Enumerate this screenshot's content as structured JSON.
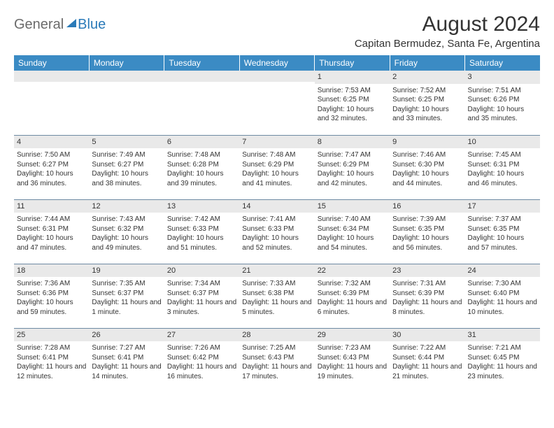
{
  "brand": {
    "part1": "General",
    "part2": "Blue"
  },
  "title": "August 2024",
  "location": "Capitan Bermudez, Santa Fe, Argentina",
  "colors": {
    "header_bg": "#3b8bc4",
    "header_text": "#ffffff",
    "daynum_bg": "#e9e9e9",
    "rule": "#6e8aa3",
    "logo_gray": "#6b6b6b",
    "logo_blue": "#2a7ab8",
    "body_text": "#333333",
    "page_bg": "#ffffff"
  },
  "typography": {
    "title_fontsize": 30,
    "location_fontsize": 15,
    "dayheader_fontsize": 12,
    "daynum_fontsize": 11,
    "cell_fontsize": 10,
    "logo_fontsize": 20
  },
  "day_headers": [
    "Sunday",
    "Monday",
    "Tuesday",
    "Wednesday",
    "Thursday",
    "Friday",
    "Saturday"
  ],
  "weeks": [
    [
      {
        "n": "",
        "sunrise": "",
        "sunset": "",
        "daylight": ""
      },
      {
        "n": "",
        "sunrise": "",
        "sunset": "",
        "daylight": ""
      },
      {
        "n": "",
        "sunrise": "",
        "sunset": "",
        "daylight": ""
      },
      {
        "n": "",
        "sunrise": "",
        "sunset": "",
        "daylight": ""
      },
      {
        "n": "1",
        "sunrise": "Sunrise: 7:53 AM",
        "sunset": "Sunset: 6:25 PM",
        "daylight": "Daylight: 10 hours and 32 minutes."
      },
      {
        "n": "2",
        "sunrise": "Sunrise: 7:52 AM",
        "sunset": "Sunset: 6:25 PM",
        "daylight": "Daylight: 10 hours and 33 minutes."
      },
      {
        "n": "3",
        "sunrise": "Sunrise: 7:51 AM",
        "sunset": "Sunset: 6:26 PM",
        "daylight": "Daylight: 10 hours and 35 minutes."
      }
    ],
    [
      {
        "n": "4",
        "sunrise": "Sunrise: 7:50 AM",
        "sunset": "Sunset: 6:27 PM",
        "daylight": "Daylight: 10 hours and 36 minutes."
      },
      {
        "n": "5",
        "sunrise": "Sunrise: 7:49 AM",
        "sunset": "Sunset: 6:27 PM",
        "daylight": "Daylight: 10 hours and 38 minutes."
      },
      {
        "n": "6",
        "sunrise": "Sunrise: 7:48 AM",
        "sunset": "Sunset: 6:28 PM",
        "daylight": "Daylight: 10 hours and 39 minutes."
      },
      {
        "n": "7",
        "sunrise": "Sunrise: 7:48 AM",
        "sunset": "Sunset: 6:29 PM",
        "daylight": "Daylight: 10 hours and 41 minutes."
      },
      {
        "n": "8",
        "sunrise": "Sunrise: 7:47 AM",
        "sunset": "Sunset: 6:29 PM",
        "daylight": "Daylight: 10 hours and 42 minutes."
      },
      {
        "n": "9",
        "sunrise": "Sunrise: 7:46 AM",
        "sunset": "Sunset: 6:30 PM",
        "daylight": "Daylight: 10 hours and 44 minutes."
      },
      {
        "n": "10",
        "sunrise": "Sunrise: 7:45 AM",
        "sunset": "Sunset: 6:31 PM",
        "daylight": "Daylight: 10 hours and 46 minutes."
      }
    ],
    [
      {
        "n": "11",
        "sunrise": "Sunrise: 7:44 AM",
        "sunset": "Sunset: 6:31 PM",
        "daylight": "Daylight: 10 hours and 47 minutes."
      },
      {
        "n": "12",
        "sunrise": "Sunrise: 7:43 AM",
        "sunset": "Sunset: 6:32 PM",
        "daylight": "Daylight: 10 hours and 49 minutes."
      },
      {
        "n": "13",
        "sunrise": "Sunrise: 7:42 AM",
        "sunset": "Sunset: 6:33 PM",
        "daylight": "Daylight: 10 hours and 51 minutes."
      },
      {
        "n": "14",
        "sunrise": "Sunrise: 7:41 AM",
        "sunset": "Sunset: 6:33 PM",
        "daylight": "Daylight: 10 hours and 52 minutes."
      },
      {
        "n": "15",
        "sunrise": "Sunrise: 7:40 AM",
        "sunset": "Sunset: 6:34 PM",
        "daylight": "Daylight: 10 hours and 54 minutes."
      },
      {
        "n": "16",
        "sunrise": "Sunrise: 7:39 AM",
        "sunset": "Sunset: 6:35 PM",
        "daylight": "Daylight: 10 hours and 56 minutes."
      },
      {
        "n": "17",
        "sunrise": "Sunrise: 7:37 AM",
        "sunset": "Sunset: 6:35 PM",
        "daylight": "Daylight: 10 hours and 57 minutes."
      }
    ],
    [
      {
        "n": "18",
        "sunrise": "Sunrise: 7:36 AM",
        "sunset": "Sunset: 6:36 PM",
        "daylight": "Daylight: 10 hours and 59 minutes."
      },
      {
        "n": "19",
        "sunrise": "Sunrise: 7:35 AM",
        "sunset": "Sunset: 6:37 PM",
        "daylight": "Daylight: 11 hours and 1 minute."
      },
      {
        "n": "20",
        "sunrise": "Sunrise: 7:34 AM",
        "sunset": "Sunset: 6:37 PM",
        "daylight": "Daylight: 11 hours and 3 minutes."
      },
      {
        "n": "21",
        "sunrise": "Sunrise: 7:33 AM",
        "sunset": "Sunset: 6:38 PM",
        "daylight": "Daylight: 11 hours and 5 minutes."
      },
      {
        "n": "22",
        "sunrise": "Sunrise: 7:32 AM",
        "sunset": "Sunset: 6:39 PM",
        "daylight": "Daylight: 11 hours and 6 minutes."
      },
      {
        "n": "23",
        "sunrise": "Sunrise: 7:31 AM",
        "sunset": "Sunset: 6:39 PM",
        "daylight": "Daylight: 11 hours and 8 minutes."
      },
      {
        "n": "24",
        "sunrise": "Sunrise: 7:30 AM",
        "sunset": "Sunset: 6:40 PM",
        "daylight": "Daylight: 11 hours and 10 minutes."
      }
    ],
    [
      {
        "n": "25",
        "sunrise": "Sunrise: 7:28 AM",
        "sunset": "Sunset: 6:41 PM",
        "daylight": "Daylight: 11 hours and 12 minutes."
      },
      {
        "n": "26",
        "sunrise": "Sunrise: 7:27 AM",
        "sunset": "Sunset: 6:41 PM",
        "daylight": "Daylight: 11 hours and 14 minutes."
      },
      {
        "n": "27",
        "sunrise": "Sunrise: 7:26 AM",
        "sunset": "Sunset: 6:42 PM",
        "daylight": "Daylight: 11 hours and 16 minutes."
      },
      {
        "n": "28",
        "sunrise": "Sunrise: 7:25 AM",
        "sunset": "Sunset: 6:43 PM",
        "daylight": "Daylight: 11 hours and 17 minutes."
      },
      {
        "n": "29",
        "sunrise": "Sunrise: 7:23 AM",
        "sunset": "Sunset: 6:43 PM",
        "daylight": "Daylight: 11 hours and 19 minutes."
      },
      {
        "n": "30",
        "sunrise": "Sunrise: 7:22 AM",
        "sunset": "Sunset: 6:44 PM",
        "daylight": "Daylight: 11 hours and 21 minutes."
      },
      {
        "n": "31",
        "sunrise": "Sunrise: 7:21 AM",
        "sunset": "Sunset: 6:45 PM",
        "daylight": "Daylight: 11 hours and 23 minutes."
      }
    ]
  ]
}
